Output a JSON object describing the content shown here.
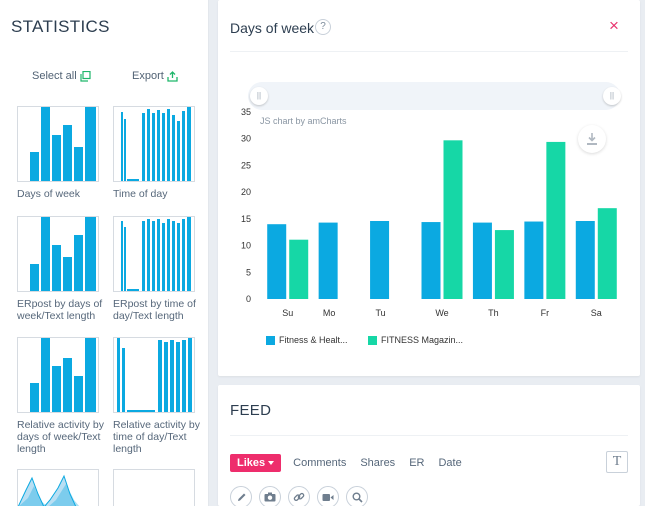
{
  "statistics": {
    "title": "STATISTICS",
    "select_all": "Select all",
    "export": "Export",
    "thumbnails": [
      {
        "label": "Days of week"
      },
      {
        "label": "Time of day"
      },
      {
        "label": "ERpost by days of week/Text length"
      },
      {
        "label": "ERpost by time of day/Text length"
      },
      {
        "label": "Relative activity by days of week/Text length"
      },
      {
        "label": "Relative activity by time of day/Text length"
      }
    ]
  },
  "days_card": {
    "title": "Days of week",
    "help": "?",
    "close": "×",
    "credit": "JS chart by amCharts"
  },
  "chart_data": {
    "type": "bar",
    "categories": [
      "Su",
      "Mo",
      "Tu",
      "We",
      "Th",
      "Fr",
      "Sa"
    ],
    "series": [
      {
        "name": "Fitness & Healt...",
        "color": "#0ba9e1",
        "values": [
          14,
          14.3,
          14.6,
          14.4,
          14.3,
          14.5,
          14.6
        ]
      },
      {
        "name": "FITNESS Magazin...",
        "color": "#16d7a6",
        "values": [
          11.1,
          0,
          0,
          29.7,
          12.9,
          29.4,
          17
        ]
      }
    ],
    "y_ticks": [
      "35",
      "30",
      "25",
      "20",
      "15",
      "10",
      "5",
      "0"
    ],
    "ylim": [
      0,
      35
    ],
    "grid": false,
    "legend": "bottom-left"
  },
  "feed": {
    "title": "FEED",
    "tabs": [
      {
        "label": "Likes",
        "active": true
      },
      {
        "label": "Comments"
      },
      {
        "label": "Shares"
      },
      {
        "label": "ER"
      },
      {
        "label": "Date"
      }
    ],
    "text_button": "T",
    "tools": [
      "pencil-icon",
      "camera-icon",
      "link-icon",
      "video-icon",
      "search-icon"
    ]
  },
  "colors": {
    "accent": "#ee2d6c",
    "series1": "#0ba9e1",
    "series2": "#16d7a6",
    "export_icon": "#1fb66b"
  }
}
